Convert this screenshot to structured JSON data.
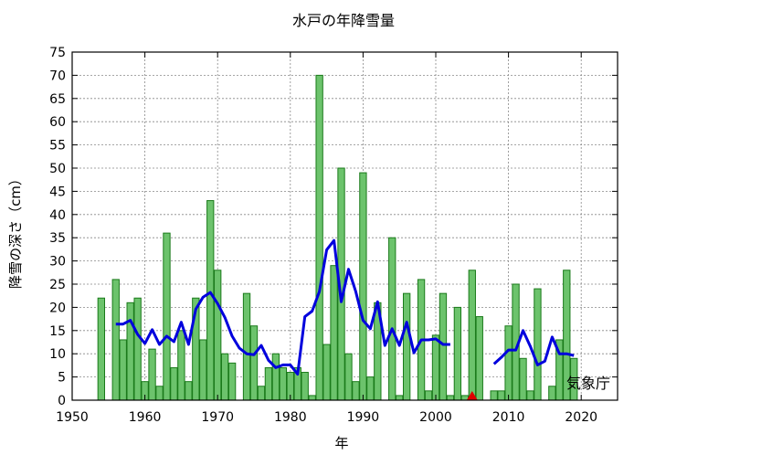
{
  "chart_data": {
    "type": "bar",
    "title": "水戸の年降雪量",
    "xlabel": "年",
    "ylabel": "降雪の深さ（cm）",
    "credit": "気象庁",
    "xlim": [
      1950,
      2025
    ],
    "ylim": [
      0,
      75
    ],
    "xticks": [
      1950,
      1960,
      1970,
      1980,
      1990,
      2000,
      2010,
      2020
    ],
    "yticks": [
      0,
      5,
      10,
      15,
      20,
      25,
      30,
      35,
      40,
      45,
      50,
      55,
      60,
      65,
      70,
      75
    ],
    "grid": true,
    "bar_color": "#6cc36c",
    "bar_edge_color": "#1a7a1a",
    "line_color": "#0000dd",
    "marker_color": "#dd0000",
    "bars": {
      "x": [
        1954,
        1956,
        1957,
        1958,
        1959,
        1960,
        1961,
        1962,
        1963,
        1964,
        1965,
        1966,
        1967,
        1968,
        1969,
        1970,
        1971,
        1972,
        1973,
        1974,
        1975,
        1976,
        1977,
        1978,
        1979,
        1980,
        1981,
        1982,
        1983,
        1984,
        1985,
        1986,
        1987,
        1988,
        1989,
        1990,
        1991,
        1992,
        1993,
        1994,
        1995,
        1996,
        1997,
        1998,
        1999,
        2000,
        2001,
        2002,
        2003,
        2004,
        2005,
        2006,
        2008,
        2009,
        2010,
        2011,
        2012,
        2013,
        2014,
        2016,
        2017,
        2018,
        2019
      ],
      "values": [
        22,
        26,
        13,
        21,
        22,
        4,
        11,
        3,
        36,
        7,
        15,
        4,
        22,
        13,
        43,
        28,
        10,
        8,
        0,
        23,
        16,
        3,
        7,
        10,
        7,
        6,
        7,
        6,
        1,
        70,
        12,
        29,
        50,
        10,
        4,
        49,
        5,
        21,
        0,
        35,
        1,
        23,
        0,
        26,
        2,
        14,
        23,
        1,
        20,
        1,
        28,
        18,
        2,
        2,
        16,
        25,
        9,
        2,
        24,
        3,
        13,
        28,
        9
      ]
    },
    "moving_average": {
      "segments": [
        {
          "x": [
            1956,
            1957,
            1958,
            1959,
            1960,
            1961,
            1962,
            1963,
            1964,
            1965,
            1966,
            1967,
            1968,
            1969,
            1970,
            1971,
            1972,
            1973,
            1974,
            1975,
            1976,
            1977,
            1978,
            1979,
            1980,
            1981,
            1982,
            1983,
            1984,
            1985,
            1986,
            1987,
            1988,
            1989,
            1990,
            1991,
            1992,
            1993,
            1994,
            1995,
            1996,
            1997,
            1998,
            1999,
            2000,
            2001,
            2002
          ],
          "y": [
            16.4,
            16.4,
            17.2,
            14.2,
            12.2,
            15.2,
            12.0,
            13.8,
            12.6,
            16.8,
            12.0,
            19.6,
            22.2,
            23.2,
            20.8,
            17.8,
            13.8,
            11.2,
            10.0,
            9.8,
            11.8,
            8.6,
            7.0,
            7.6,
            7.6,
            5.6,
            18.0,
            19.2,
            23.4,
            32.4,
            34.4,
            21.2,
            28.2,
            23.4,
            17.2,
            15.4,
            21.2,
            11.8,
            15.4,
            11.8,
            16.8,
            10.2,
            13.0,
            13.0,
            13.2,
            12.0,
            12.0
          ]
        },
        {
          "x": [
            2008,
            2009,
            2010,
            2011,
            2012,
            2013,
            2014,
            2015,
            2016,
            2017,
            2018,
            2019
          ],
          "y": [
            7.8,
            9.2,
            10.8,
            10.8,
            15.0,
            11.6,
            7.6,
            8.4,
            13.6,
            10.0,
            10.0,
            9.6
          ]
        }
      ]
    },
    "markers": [
      {
        "x": 2005,
        "y": 0,
        "shape": "triangle"
      }
    ]
  }
}
